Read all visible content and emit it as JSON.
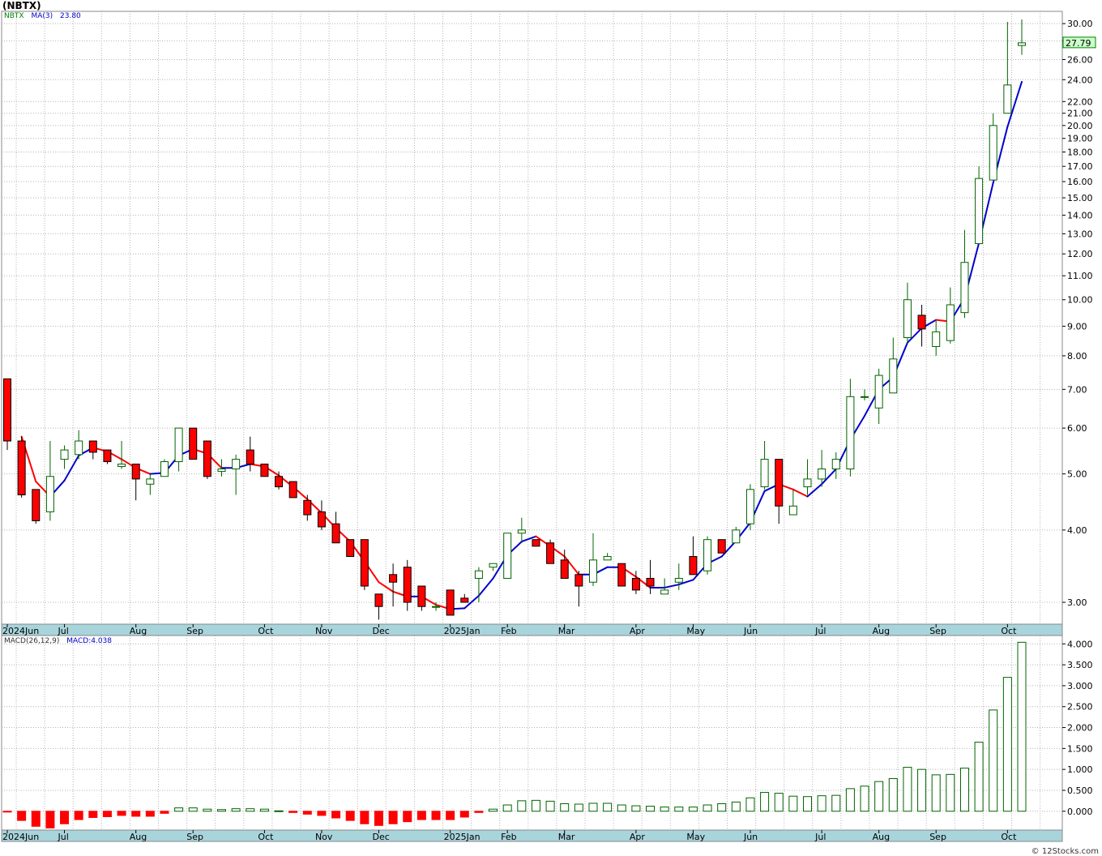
{
  "title": "(NBTX)",
  "copyright": "© 12Stocks.com",
  "colors": {
    "up": "#006400",
    "down": "#ff0000",
    "ma_up": "#0000cc",
    "ma_down": "#ff0000",
    "grid": "#b4b4b4",
    "axis_bar": "#a8d4dc",
    "last_price_bg": "#ccffcc"
  },
  "chart_data": [
    {
      "type": "candlestick",
      "ticker": "NBTX",
      "scale": "log",
      "ylim": [
        2.75,
        31.5
      ],
      "y_ticks": [
        3.0,
        4.0,
        5.0,
        6.0,
        7.0,
        8.0,
        9.0,
        10.0,
        11.0,
        12.0,
        13.0,
        14.0,
        15.0,
        16.0,
        17.0,
        18.0,
        19.0,
        20.0,
        21.0,
        22.0,
        24.0,
        26.0,
        28.0,
        30.0
      ],
      "last_price": "27.79",
      "legend": {
        "ticker_label": "NBTX",
        "ma_label": "MA(3)",
        "ma_value": "23.80"
      },
      "x_labels": [
        "2024Jun",
        "Jul",
        "Aug",
        "Sep",
        "Oct",
        "Nov",
        "Dec",
        "2025Jan",
        "Feb",
        "Mar",
        "Apr",
        "May",
        "Jun",
        "Jul",
        "Aug",
        "Sep",
        "Oct"
      ],
      "x_label_weeks": [
        0,
        4,
        9,
        13,
        18,
        22,
        26,
        31,
        35,
        39,
        44,
        48,
        52,
        57,
        61,
        65,
        70
      ],
      "candles": [
        [
          7.3,
          7.3,
          5.5,
          5.7
        ],
        [
          5.7,
          5.8,
          4.55,
          4.6
        ],
        [
          4.7,
          4.7,
          4.1,
          4.15
        ],
        [
          4.3,
          5.7,
          4.15,
          4.95
        ],
        [
          5.3,
          5.6,
          5.1,
          5.5
        ],
        [
          5.4,
          5.95,
          5.3,
          5.7
        ],
        [
          5.7,
          5.7,
          5.3,
          5.45
        ],
        [
          5.5,
          5.5,
          5.2,
          5.25
        ],
        [
          5.15,
          5.7,
          5.1,
          5.2
        ],
        [
          5.2,
          5.2,
          4.5,
          4.9
        ],
        [
          4.8,
          5.0,
          4.6,
          4.9
        ],
        [
          4.95,
          5.3,
          4.95,
          5.25
        ],
        [
          5.25,
          6.0,
          5.05,
          6.0
        ],
        [
          6.0,
          6.0,
          5.3,
          5.3
        ],
        [
          5.7,
          5.7,
          4.9,
          4.95
        ],
        [
          5.05,
          5.3,
          4.95,
          5.1
        ],
        [
          5.1,
          5.4,
          4.6,
          5.3
        ],
        [
          5.5,
          5.8,
          5.05,
          5.2
        ],
        [
          5.2,
          5.2,
          4.95,
          4.95
        ],
        [
          4.95,
          5.05,
          4.7,
          4.75
        ],
        [
          4.85,
          4.85,
          4.55,
          4.55
        ],
        [
          4.5,
          4.6,
          4.15,
          4.25
        ],
        [
          4.3,
          4.5,
          4.0,
          4.05
        ],
        [
          4.1,
          4.3,
          3.85,
          3.8
        ],
        [
          3.85,
          3.85,
          3.6,
          3.6
        ],
        [
          3.85,
          3.85,
          3.15,
          3.2
        ],
        [
          3.1,
          3.1,
          2.8,
          2.95
        ],
        [
          3.35,
          3.5,
          2.95,
          3.25
        ],
        [
          3.45,
          3.55,
          2.9,
          3.0
        ],
        [
          3.2,
          3.2,
          2.9,
          2.95
        ],
        [
          2.95,
          3.0,
          2.9,
          2.95
        ],
        [
          3.15,
          3.15,
          2.85,
          2.85
        ],
        [
          3.05,
          3.1,
          3.0,
          3.0
        ],
        [
          3.3,
          3.45,
          3.0,
          3.4
        ],
        [
          3.45,
          3.5,
          3.4,
          3.5
        ],
        [
          3.3,
          3.95,
          3.3,
          3.95
        ],
        [
          3.95,
          4.2,
          3.8,
          4.0
        ],
        [
          3.85,
          3.85,
          3.75,
          3.75
        ],
        [
          3.8,
          3.85,
          3.6,
          3.5
        ],
        [
          3.55,
          3.7,
          3.3,
          3.3
        ],
        [
          3.35,
          3.4,
          2.95,
          3.2
        ],
        [
          3.25,
          3.95,
          3.2,
          3.55
        ],
        [
          3.55,
          3.65,
          3.55,
          3.6
        ],
        [
          3.5,
          3.5,
          3.2,
          3.2
        ],
        [
          3.3,
          3.4,
          3.1,
          3.15
        ],
        [
          3.3,
          3.55,
          3.1,
          3.2
        ],
        [
          3.1,
          3.3,
          3.1,
          3.15
        ],
        [
          3.25,
          3.5,
          3.15,
          3.3
        ],
        [
          3.6,
          3.9,
          3.4,
          3.35
        ],
        [
          3.4,
          3.9,
          3.35,
          3.85
        ],
        [
          3.85,
          3.85,
          3.65,
          3.65
        ],
        [
          3.8,
          4.05,
          3.8,
          4.0
        ],
        [
          4.1,
          4.8,
          4.0,
          4.7
        ],
        [
          4.75,
          5.7,
          4.7,
          5.3
        ],
        [
          5.3,
          5.3,
          4.1,
          4.4
        ],
        [
          4.25,
          4.7,
          4.25,
          4.4
        ],
        [
          4.75,
          5.3,
          4.6,
          4.9
        ],
        [
          4.9,
          5.5,
          4.75,
          5.1
        ],
        [
          5.1,
          5.45,
          4.9,
          5.3
        ],
        [
          5.1,
          7.3,
          4.95,
          6.8
        ],
        [
          6.8,
          7.0,
          6.7,
          6.8
        ],
        [
          6.5,
          7.6,
          6.1,
          7.4
        ],
        [
          6.9,
          8.6,
          6.9,
          7.9
        ],
        [
          8.6,
          10.7,
          8.4,
          10.0
        ],
        [
          9.4,
          9.8,
          8.3,
          8.9
        ],
        [
          8.3,
          9.2,
          8.0,
          8.8
        ],
        [
          8.5,
          10.5,
          8.4,
          9.8
        ],
        [
          9.5,
          13.2,
          9.3,
          11.6
        ],
        [
          12.5,
          17.0,
          12.5,
          16.2
        ],
        [
          16.1,
          21.0,
          16.1,
          20.0
        ],
        [
          21.0,
          30.2,
          21.0,
          23.5
        ],
        [
          27.5,
          30.5,
          26.5,
          27.79
        ]
      ],
      "ma": [
        null,
        5.8,
        4.85,
        4.57,
        4.87,
        5.38,
        5.55,
        5.47,
        5.3,
        5.12,
        5.0,
        5.02,
        5.38,
        5.52,
        5.42,
        5.12,
        5.12,
        5.2,
        5.15,
        4.97,
        4.75,
        4.52,
        4.28,
        4.03,
        3.82,
        3.53,
        3.25,
        3.13,
        3.07,
        3.07,
        2.97,
        2.92,
        2.93,
        3.08,
        3.3,
        3.62,
        3.82,
        3.9,
        3.75,
        3.6,
        3.35,
        3.35,
        3.45,
        3.45,
        3.32,
        3.18,
        3.18,
        3.22,
        3.28,
        3.5,
        3.6,
        3.83,
        4.12,
        4.67,
        4.8,
        4.7,
        4.57,
        4.8,
        5.1,
        5.73,
        6.3,
        7.0,
        7.35,
        8.43,
        8.93,
        9.23,
        9.17,
        10.07,
        12.53,
        15.93,
        19.9,
        23.8
      ],
      "legend_placement": "top-left"
    },
    {
      "type": "bar",
      "title_label": "MACD(26,12,9)",
      "value_label": "MACD:4.038",
      "ylim": [
        -0.45,
        4.2
      ],
      "y_ticks": [
        0.0,
        0.5,
        1.0,
        1.5,
        2.0,
        2.5,
        3.0,
        3.5,
        4.0
      ],
      "y_tick_labels": [
        "0.000",
        "0.500",
        "1.000",
        "1.500",
        "2.000",
        "2.500",
        "3.000",
        "3.500",
        "4.000"
      ],
      "values": [
        -0.02,
        -0.22,
        -0.36,
        -0.4,
        -0.3,
        -0.2,
        -0.15,
        -0.13,
        -0.1,
        -0.12,
        -0.12,
        -0.05,
        0.08,
        0.08,
        0.05,
        0.04,
        0.06,
        0.06,
        0.05,
        0.01,
        -0.03,
        -0.07,
        -0.1,
        -0.16,
        -0.22,
        -0.3,
        -0.34,
        -0.3,
        -0.25,
        -0.2,
        -0.2,
        -0.2,
        -0.14,
        -0.03,
        0.05,
        0.15,
        0.25,
        0.26,
        0.24,
        0.18,
        0.17,
        0.19,
        0.19,
        0.15,
        0.13,
        0.12,
        0.1,
        0.1,
        0.1,
        0.15,
        0.18,
        0.22,
        0.32,
        0.45,
        0.43,
        0.36,
        0.35,
        0.37,
        0.38,
        0.54,
        0.6,
        0.71,
        0.78,
        1.05,
        1.0,
        0.87,
        0.88,
        1.03,
        1.65,
        2.42,
        3.2,
        4.038
      ],
      "x_labels": [
        "2024Jun",
        "Jul",
        "Aug",
        "Sep",
        "Oct",
        "Nov",
        "Dec",
        "2025Jan",
        "Feb",
        "Mar",
        "Apr",
        "May",
        "Jun",
        "Jul",
        "Aug",
        "Sep",
        "Oct"
      ],
      "x_label_weeks": [
        0,
        4,
        9,
        13,
        18,
        22,
        26,
        31,
        35,
        39,
        44,
        48,
        52,
        57,
        61,
        65,
        70
      ]
    }
  ]
}
